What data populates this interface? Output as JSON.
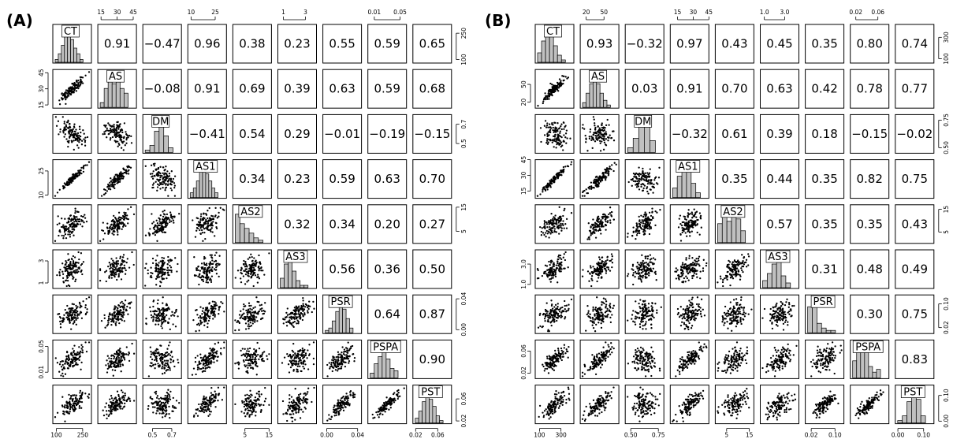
{
  "chart_data": [
    {
      "type": "scatter",
      "panel": "(A)",
      "variables": [
        "CT",
        "AS",
        "DM",
        "AS1",
        "AS2",
        "AS3",
        "PSR",
        "PSPA",
        "PST"
      ],
      "correlations": [
        [
          null,
          "0.91",
          "−0.47",
          "0.96",
          "0.38",
          "0.23",
          "0.55",
          "0.59",
          "0.65"
        ],
        [
          null,
          null,
          "−0.08",
          "0.91",
          "0.69",
          "0.39",
          "0.63",
          "0.59",
          "0.68"
        ],
        [
          null,
          null,
          null,
          "−0.41",
          "0.54",
          "0.29",
          "−0.01",
          "−0.19",
          "−0.15"
        ],
        [
          null,
          null,
          null,
          null,
          "0.34",
          "0.23",
          "0.59",
          "0.63",
          "0.70"
        ],
        [
          null,
          null,
          null,
          null,
          null,
          "0.32",
          "0.34",
          "0.20",
          "0.27"
        ],
        [
          null,
          null,
          null,
          null,
          null,
          null,
          "0.56",
          "0.36",
          "0.50"
        ],
        [
          null,
          null,
          null,
          null,
          null,
          null,
          null,
          "0.64",
          "0.87"
        ],
        [
          null,
          null,
          null,
          null,
          null,
          null,
          null,
          null,
          "0.90"
        ],
        [
          null,
          null,
          null,
          null,
          null,
          null,
          null,
          null,
          null
        ]
      ],
      "ranges": [
        [
          80,
          300
        ],
        [
          12,
          48
        ],
        [
          0.4,
          0.8
        ],
        [
          8,
          32
        ],
        [
          0,
          16
        ],
        [
          0.5,
          4
        ],
        [
          -0.005,
          0.045
        ],
        [
          0,
          0.06
        ],
        [
          0.015,
          0.085
        ]
      ],
      "ticks": [
        [
          "100",
          "250"
        ],
        [
          "15",
          "30",
          "45"
        ],
        [
          "0.5",
          "0.7"
        ],
        [
          "10",
          "25"
        ],
        [
          "5",
          "15"
        ],
        [
          "1",
          "3"
        ],
        [
          "0.00",
          "0.04"
        ],
        [
          "0.01",
          "0.05"
        ],
        [
          "0.02",
          "0.06"
        ]
      ],
      "tick_values": [
        [
          100,
          250
        ],
        [
          15,
          30,
          45
        ],
        [
          0.5,
          0.7
        ],
        [
          10,
          25
        ],
        [
          5,
          15
        ],
        [
          1,
          3
        ],
        [
          0,
          0.04
        ],
        [
          0.01,
          0.05
        ],
        [
          0.02,
          0.06
        ]
      ],
      "histograms": [
        [
          1,
          3,
          6,
          9,
          10,
          8,
          5,
          3,
          1
        ],
        [
          2,
          8,
          12,
          10,
          11,
          8,
          6
        ],
        [
          1,
          3,
          9,
          12,
          7,
          2
        ],
        [
          2,
          4,
          7,
          11,
          12,
          10,
          7,
          4,
          2
        ],
        [
          12,
          8,
          6,
          4,
          2,
          1
        ],
        [
          4,
          10,
          12,
          7,
          3,
          1,
          1
        ],
        [
          1,
          2,
          5,
          9,
          12,
          10,
          6,
          2
        ],
        [
          2,
          6,
          9,
          12,
          8,
          4,
          3
        ],
        [
          2,
          5,
          9,
          12,
          10,
          7,
          3,
          1
        ]
      ]
    },
    {
      "type": "scatter",
      "panel": "(B)",
      "variables": [
        "CT",
        "AS",
        "DM",
        "AS1",
        "AS2",
        "AS3",
        "PSR",
        "PSPA",
        "PST"
      ],
      "correlations": [
        [
          null,
          "0.93",
          "−0.32",
          "0.97",
          "0.43",
          "0.45",
          "0.35",
          "0.80",
          "0.74"
        ],
        [
          null,
          null,
          "0.03",
          "0.91",
          "0.70",
          "0.63",
          "0.42",
          "0.78",
          "0.77"
        ],
        [
          null,
          null,
          null,
          "−0.32",
          "0.61",
          "0.39",
          "0.18",
          "−0.15",
          "−0.02"
        ],
        [
          null,
          null,
          null,
          null,
          "0.35",
          "0.44",
          "0.35",
          "0.82",
          "0.75"
        ],
        [
          null,
          null,
          null,
          null,
          null,
          "0.57",
          "0.35",
          "0.35",
          "0.43"
        ],
        [
          null,
          null,
          null,
          null,
          null,
          null,
          "0.31",
          "0.48",
          "0.49"
        ],
        [
          null,
          null,
          null,
          null,
          null,
          null,
          null,
          "0.30",
          "0.75"
        ],
        [
          null,
          null,
          null,
          null,
          null,
          null,
          null,
          null,
          "0.83"
        ],
        [
          null,
          null,
          null,
          null,
          null,
          null,
          null,
          null,
          null
        ]
      ],
      "ranges": [
        [
          60,
          420
        ],
        [
          10,
          75
        ],
        [
          0.45,
          0.8
        ],
        [
          8,
          45
        ],
        [
          0,
          17
        ],
        [
          0.6,
          4.4
        ],
        [
          0,
          0.13
        ],
        [
          0.01,
          0.08
        ],
        [
          -0.01,
          0.14
        ]
      ],
      "ticks": [
        [
          "100",
          "300"
        ],
        [
          "20",
          "50"
        ],
        [
          "0.50",
          "0.75"
        ],
        [
          "15",
          "30",
          "45"
        ],
        [
          "5",
          "15"
        ],
        [
          "1.0",
          "3.0"
        ],
        [
          "0.02",
          "0.10"
        ],
        [
          "0.02",
          "0.06"
        ],
        [
          "0.00",
          "0.10"
        ]
      ],
      "tick_values": [
        [
          100,
          300
        ],
        [
          20,
          50
        ],
        [
          0.5,
          0.75
        ],
        [
          15,
          30,
          45
        ],
        [
          5,
          15
        ],
        [
          1,
          3
        ],
        [
          0.02,
          0.1
        ],
        [
          0.02,
          0.06
        ],
        [
          0,
          0.1
        ]
      ],
      "histograms": [
        [
          4,
          9,
          12,
          11,
          7,
          3,
          1
        ],
        [
          2,
          6,
          10,
          12,
          10,
          6,
          3,
          1
        ],
        [
          2,
          6,
          11,
          12,
          5
        ],
        [
          4,
          9,
          12,
          11,
          6,
          2
        ],
        [
          8,
          11,
          9,
          12,
          10,
          5
        ],
        [
          3,
          6,
          10,
          12,
          5,
          2
        ],
        [
          11,
          12,
          4,
          2,
          1,
          1
        ],
        [
          6,
          10,
          10,
          9,
          4,
          2,
          3
        ],
        [
          1,
          3,
          9,
          12,
          10,
          3
        ]
      ]
    }
  ]
}
